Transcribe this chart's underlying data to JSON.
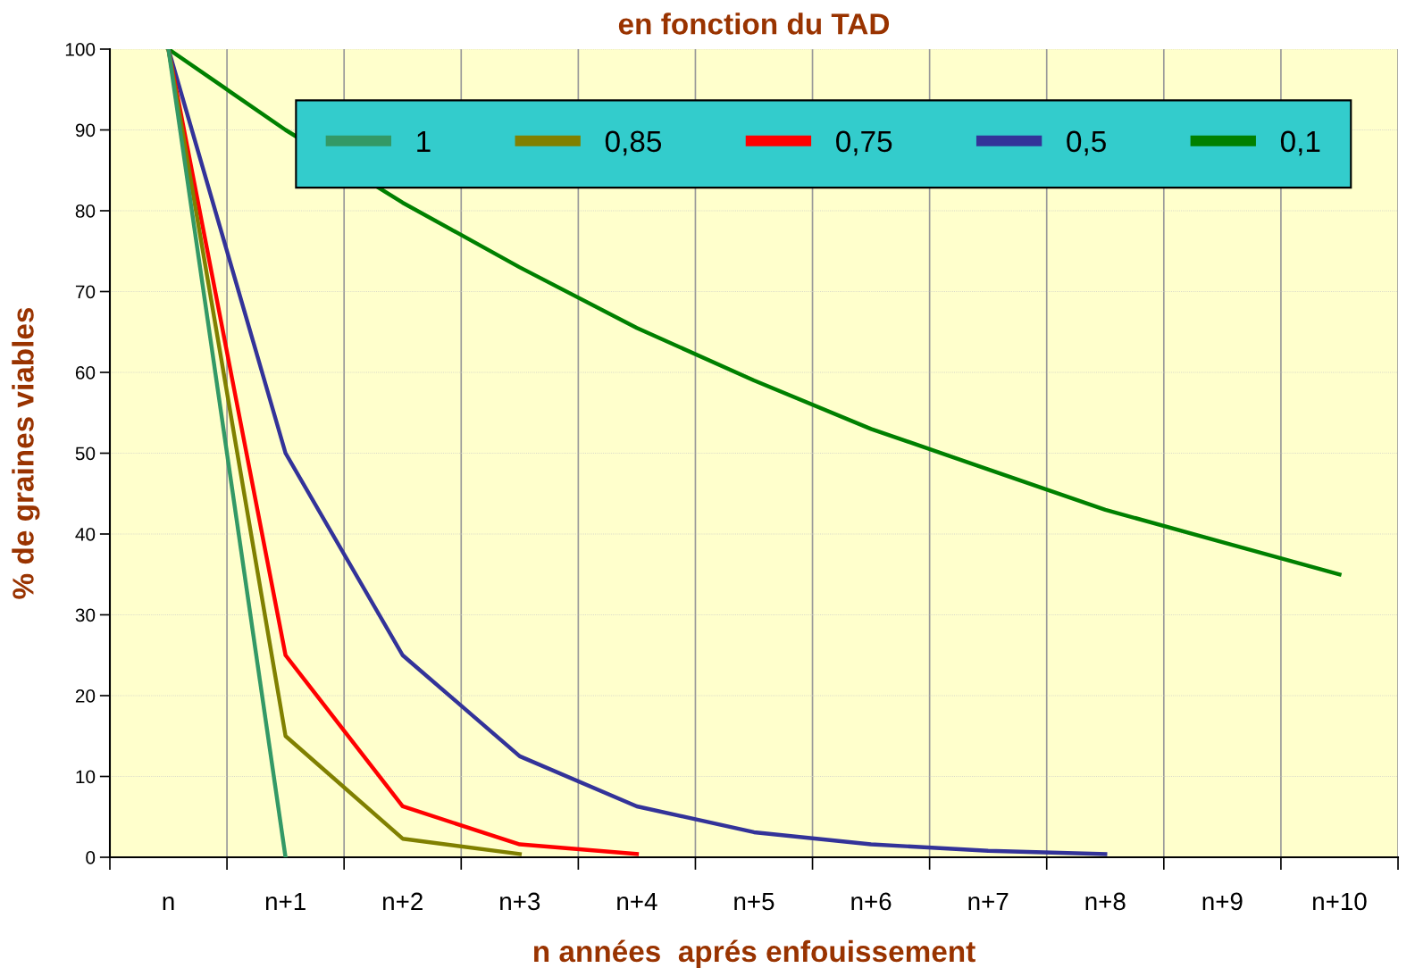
{
  "chart_data": {
    "type": "line",
    "title": "en fonction du TAD",
    "xlabel": "n années  aprés enfouissement",
    "ylabel": "% de graines viables",
    "categories": [
      "n",
      "n+1",
      "n+2",
      "n+3",
      "n+4",
      "n+5",
      "n+6",
      "n+7",
      "n+8",
      "n+9",
      "n+10"
    ],
    "series": [
      {
        "name": "1",
        "color": "#339966",
        "values": [
          100,
          0,
          null,
          null,
          null,
          null,
          null,
          null,
          null,
          null,
          null
        ]
      },
      {
        "name": "0,85",
        "color": "#808000",
        "values": [
          100,
          15,
          2.3,
          0.4,
          null,
          null,
          null,
          null,
          null,
          null,
          null
        ]
      },
      {
        "name": "0,75",
        "color": "#ff0000",
        "values": [
          100,
          25,
          6.3,
          1.6,
          0.4,
          null,
          null,
          null,
          null,
          null,
          null
        ]
      },
      {
        "name": "0,5",
        "color": "#333399",
        "values": [
          100,
          50,
          25,
          12.5,
          6.3,
          3.1,
          1.6,
          0.8,
          0.4,
          null,
          null
        ]
      },
      {
        "name": "0,1",
        "color": "#008000",
        "values": [
          100,
          90,
          81,
          73,
          65.5,
          59,
          53,
          48,
          43,
          39,
          35
        ]
      }
    ],
    "ylim": [
      0,
      100
    ],
    "yticks": [
      0,
      10,
      20,
      30,
      40,
      50,
      60,
      70,
      80,
      90,
      100
    ],
    "grid": true,
    "legend": "top right",
    "marker": "none",
    "line_style": "solid"
  }
}
